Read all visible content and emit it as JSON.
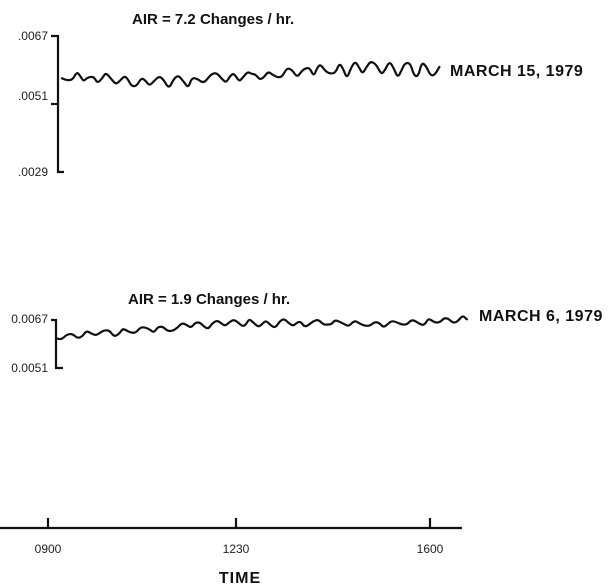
{
  "chart_data": [
    {
      "type": "line",
      "title": "AIR = 7.2 Changes / hr.",
      "series": [
        {
          "name": "MARCH 15, 1979"
        }
      ],
      "y_ticks": [
        ".0067",
        ".0051",
        ".0029"
      ],
      "ylim": [
        0.0029,
        0.0067
      ]
    },
    {
      "type": "line",
      "title": "AIR = 1.9 Changes / hr.",
      "series": [
        {
          "name": "MARCH 6, 1979"
        }
      ],
      "y_ticks": [
        "0.0067",
        "0.0051"
      ],
      "ylim": [
        0.0051,
        0.0067
      ]
    }
  ],
  "x_axis": {
    "title": "TIME",
    "ticks": [
      "0900",
      "1230",
      "1600"
    ]
  }
}
